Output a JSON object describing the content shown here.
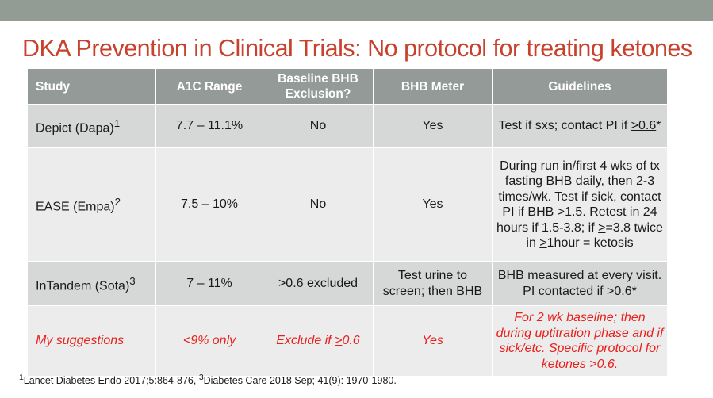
{
  "slide": {
    "title": "DKA Prevention in Clinical Trials:  No protocol for treating ketones"
  },
  "table": {
    "headers": [
      "Study",
      "A1C Range",
      "Baseline BHB Exclusion?",
      "BHB Meter",
      "Guidelines"
    ],
    "rows": [
      {
        "study": "Depict (Dapa)",
        "study_sup": "1",
        "a1c": "7.7 – 11.1%",
        "exclusion": "No",
        "meter": "Yes",
        "guidelines_a": "Test if sxs; contact PI if ",
        "guidelines_u": ">0.6",
        "guidelines_b": "*"
      },
      {
        "study": "EASE (Empa)",
        "study_sup": "2",
        "a1c": "7.5 – 10%",
        "exclusion": "No",
        "meter": "Yes",
        "guidelines_a": "During run in/first 4 wks of tx fasting BHB daily, then 2-3 times/wk. Test if sick, contact PI if BHB >1.5. Retest in 24 hours if 1.5-3.8; if ",
        "guidelines_u1": ">",
        "guidelines_b": "=3.8 twice in ",
        "guidelines_u2": ">",
        "guidelines_c": "1hour = ketosis"
      },
      {
        "study": "InTandem (Sota)",
        "study_sup": "3",
        "a1c": "7 – 11%",
        "exclusion": ">0.6 excluded",
        "meter": "Test urine to screen; then BHB",
        "guidelines": "BHB measured at every visit. PI contacted if >0.6*"
      },
      {
        "study": "My suggestions",
        "a1c": "<9% only",
        "exclusion_a": "Exclude if ",
        "exclusion_u": ">",
        "exclusion_b": "0.6",
        "meter": "Yes",
        "guidelines_a": "For 2 wk baseline; then during uptitration phase and if sick/etc. Specific protocol for ketones ",
        "guidelines_u": ">",
        "guidelines_b": "0.6."
      }
    ]
  },
  "footnote": {
    "sup1": "1",
    "text1": "Lancet Diabetes Endo 2017;5:864-876, ",
    "sup3": "3",
    "text2": "Diabetes Care 2018 Sep; 41(9): 1970-1980."
  },
  "colors": {
    "title": "#c8412d",
    "header_bg": "#939a97",
    "suggestion_text": "#e8211d",
    "top_bar": "#929c95"
  }
}
